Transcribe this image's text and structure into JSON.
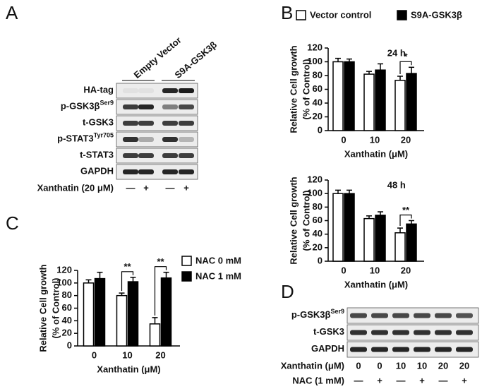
{
  "panel_labels": [
    "A",
    "B",
    "C",
    "D"
  ],
  "blot_a": {
    "columns": [
      "Empty Vector",
      "S9A-GSK3β"
    ],
    "rows": [
      {
        "text": "HA-tag"
      },
      {
        "text": "p-GSK3β",
        "sup": "Ser9"
      },
      {
        "text": "t-GSK3"
      },
      {
        "text": "p-STAT3",
        "sup": "Tyr705"
      },
      {
        "text": "t-STAT3"
      },
      {
        "text": "GAPDH"
      }
    ],
    "treatments": [
      {
        "label": "Xanthatin (20 μM)",
        "marks": [
          "—",
          "+",
          "—",
          "+"
        ]
      }
    ]
  },
  "blot_d": {
    "rows": [
      {
        "text": "p-GSK3β",
        "sup": "Ser9"
      },
      {
        "text": "t-GSK3"
      },
      {
        "text": "GAPDH"
      }
    ],
    "treatments": [
      {
        "label": "Xanthatin (μM)",
        "marks": [
          "0",
          "0",
          "10",
          "10",
          "20",
          "20"
        ]
      },
      {
        "label": "NAC (1 mM)",
        "marks": [
          "—",
          "+",
          "—",
          "+",
          "—",
          "+"
        ]
      }
    ]
  },
  "chart_data": [
    {
      "type": "bar",
      "title": "24 h",
      "xlabel": "Xanthatin (μM)",
      "ylabel": [
        "Relative Cell growth",
        "(% of Control)"
      ],
      "categories": [
        "0",
        "10",
        "20"
      ],
      "ylim": [
        0,
        120
      ],
      "yticks": [
        0,
        20,
        40,
        60,
        80,
        100,
        120
      ],
      "series": [
        {
          "name": "Vector control",
          "color": "#ffffff",
          "values": [
            100,
            82,
            73
          ],
          "errors": [
            5,
            4,
            6
          ]
        },
        {
          "name": "S9A-GSK3β",
          "color": "#000000",
          "values": [
            100,
            88,
            83
          ],
          "errors": [
            4,
            9,
            9
          ]
        }
      ],
      "significance": [
        null,
        null,
        "*"
      ]
    },
    {
      "type": "bar",
      "title": "48 h",
      "xlabel": "Xanthatin (μM)",
      "ylabel": [
        "Relative Cell growth",
        "(% of Control)"
      ],
      "categories": [
        "0",
        "10",
        "20"
      ],
      "ylim": [
        0,
        120
      ],
      "yticks": [
        0,
        20,
        40,
        60,
        80,
        100,
        120
      ],
      "series": [
        {
          "color": "#ffffff",
          "values": [
            100,
            63,
            42
          ],
          "errors": [
            5,
            4,
            7
          ]
        },
        {
          "color": "#000000",
          "values": [
            100,
            68,
            55
          ],
          "errors": [
            5,
            5,
            5
          ]
        }
      ],
      "significance": [
        null,
        null,
        "**"
      ]
    },
    {
      "type": "bar",
      "xlabel": "Xanthatin (μM)",
      "ylabel": [
        "Relative Cell growth",
        "(% of Control)"
      ],
      "categories": [
        "0",
        "10",
        "20"
      ],
      "ylim": [
        0,
        120
      ],
      "yticks": [
        0,
        20,
        40,
        60,
        80,
        100,
        120
      ],
      "series": [
        {
          "name": "NAC 0 mM",
          "color": "#ffffff",
          "values": [
            100,
            80,
            35
          ],
          "errors": [
            5,
            4,
            10
          ]
        },
        {
          "name": "NAC 1 mM",
          "color": "#000000",
          "values": [
            107,
            102,
            108
          ],
          "errors": [
            10,
            7,
            9
          ]
        }
      ],
      "significance": [
        null,
        "**",
        "**"
      ]
    }
  ]
}
